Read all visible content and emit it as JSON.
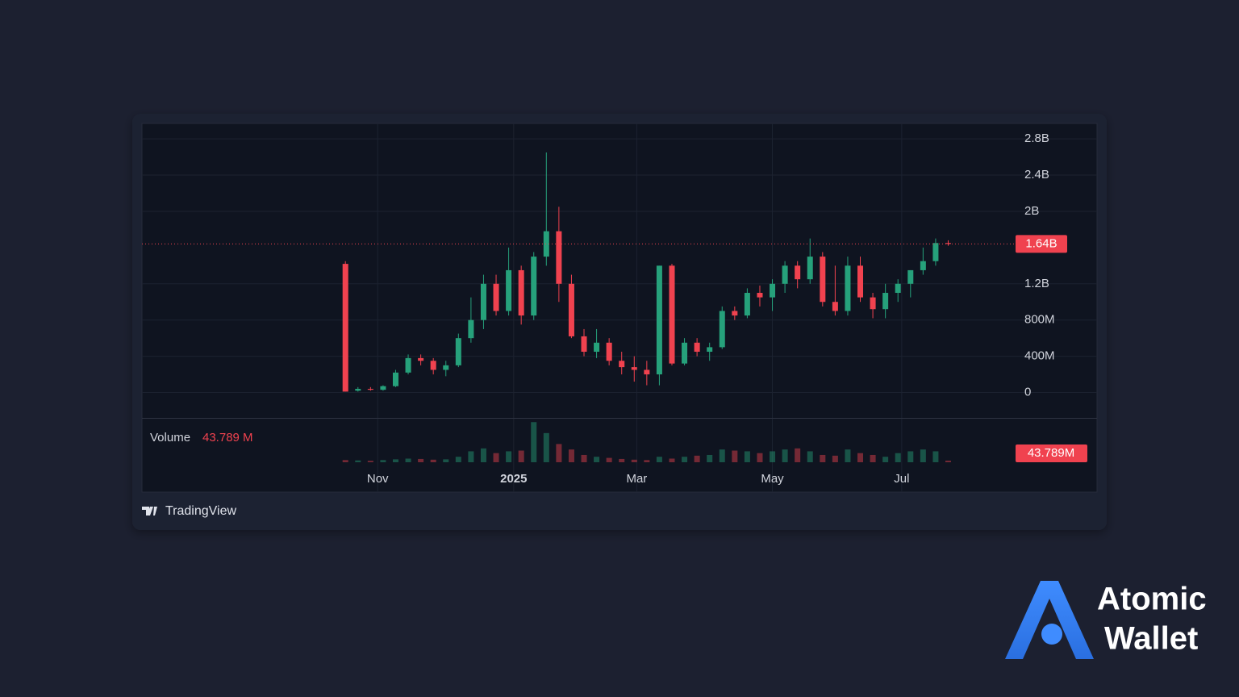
{
  "chart_data": {
    "type": "candlestick",
    "xlim": [
      -16.2,
      53.3
    ],
    "xticks": [
      {
        "value": 2.57,
        "label": "Nov"
      },
      {
        "value": 13.4,
        "label": "2025"
      },
      {
        "value": 23.2,
        "label": "Mar"
      },
      {
        "value": 34.0,
        "label": "May"
      },
      {
        "value": 44.3,
        "label": "Jul"
      }
    ],
    "ylim": [
      -0.28,
      2.97
    ],
    "yticks": [
      {
        "value": 0,
        "label": "0"
      },
      {
        "value": 0.4,
        "label": "400M"
      },
      {
        "value": 0.8,
        "label": "800M"
      },
      {
        "value": 1.2,
        "label": "1.2B"
      },
      {
        "value": 2,
        "label": "2B"
      },
      {
        "value": 2.4,
        "label": "2.4B"
      },
      {
        "value": 2.8,
        "label": "2.8B"
      }
    ],
    "grid": true,
    "up_color": "#26a17b",
    "down_color": "#f0424f",
    "open": [
      1.42,
      0.02,
      0.04,
      0.03,
      0.07,
      0.22,
      0.38,
      0.35,
      0.25,
      0.3,
      0.6,
      0.8,
      1.2,
      0.9,
      1.35,
      0.85,
      1.5,
      1.78,
      1.2,
      0.62,
      0.45,
      0.55,
      0.35,
      0.28,
      0.25,
      0.2,
      1.4,
      0.32,
      0.55,
      0.45,
      0.5,
      0.9,
      0.85,
      1.1,
      1.05,
      1.2,
      1.4,
      1.25,
      1.5,
      1.0,
      0.9,
      1.4,
      1.05,
      0.92,
      1.1,
      1.2,
      1.35,
      1.45,
      1.65
    ],
    "high": [
      1.45,
      0.06,
      0.06,
      0.08,
      0.25,
      0.42,
      0.42,
      0.38,
      0.35,
      0.65,
      1.05,
      1.3,
      1.3,
      1.6,
      1.4,
      1.55,
      2.65,
      2.05,
      1.3,
      0.7,
      0.7,
      0.6,
      0.45,
      0.4,
      0.35,
      1.4,
      1.42,
      0.6,
      0.6,
      0.55,
      0.95,
      0.95,
      1.15,
      1.18,
      1.25,
      1.45,
      1.45,
      1.7,
      1.55,
      1.4,
      1.5,
      1.5,
      1.1,
      1.2,
      1.25,
      1.35,
      1.6,
      1.7,
      1.68
    ],
    "low": [
      0.01,
      0.01,
      0.02,
      0.02,
      0.06,
      0.2,
      0.3,
      0.2,
      0.18,
      0.28,
      0.55,
      0.7,
      0.85,
      0.85,
      0.75,
      0.8,
      1.4,
      1.0,
      0.6,
      0.4,
      0.38,
      0.3,
      0.2,
      0.12,
      0.08,
      0.08,
      0.3,
      0.3,
      0.4,
      0.35,
      0.48,
      0.8,
      0.82,
      0.95,
      0.9,
      1.1,
      1.15,
      1.2,
      0.95,
      0.85,
      0.85,
      1.0,
      0.82,
      0.82,
      1.0,
      1.05,
      1.3,
      1.4,
      1.62
    ],
    "close": [
      0.01,
      0.04,
      0.03,
      0.07,
      0.22,
      0.38,
      0.35,
      0.25,
      0.3,
      0.6,
      0.8,
      1.2,
      0.9,
      1.35,
      0.85,
      1.5,
      1.78,
      1.2,
      0.62,
      0.45,
      0.55,
      0.35,
      0.28,
      0.25,
      0.2,
      1.4,
      0.32,
      0.55,
      0.45,
      0.5,
      0.9,
      0.85,
      1.1,
      1.05,
      1.2,
      1.4,
      1.25,
      1.5,
      1.0,
      0.9,
      1.4,
      1.05,
      0.92,
      1.1,
      1.2,
      1.35,
      1.45,
      1.65,
      1.64
    ],
    "last_price": {
      "value": 1.64,
      "label": "1.64B"
    },
    "volume": {
      "name": "Volume",
      "vlim": [
        0,
        1150
      ],
      "values": [
        60,
        50,
        40,
        60,
        80,
        100,
        90,
        70,
        80,
        150,
        300,
        380,
        250,
        300,
        320,
        1100,
        800,
        500,
        350,
        200,
        150,
        120,
        90,
        70,
        60,
        150,
        100,
        150,
        180,
        200,
        350,
        320,
        300,
        250,
        300,
        350,
        380,
        300,
        200,
        180,
        350,
        250,
        200,
        150,
        250,
        300,
        350,
        300,
        43.789
      ],
      "legend_label": "43.789 M",
      "axis_label": "43.789M"
    }
  },
  "footer": {
    "brand": "TradingView"
  },
  "logo": {
    "line1": "Atomic",
    "line2": "Wallet"
  }
}
